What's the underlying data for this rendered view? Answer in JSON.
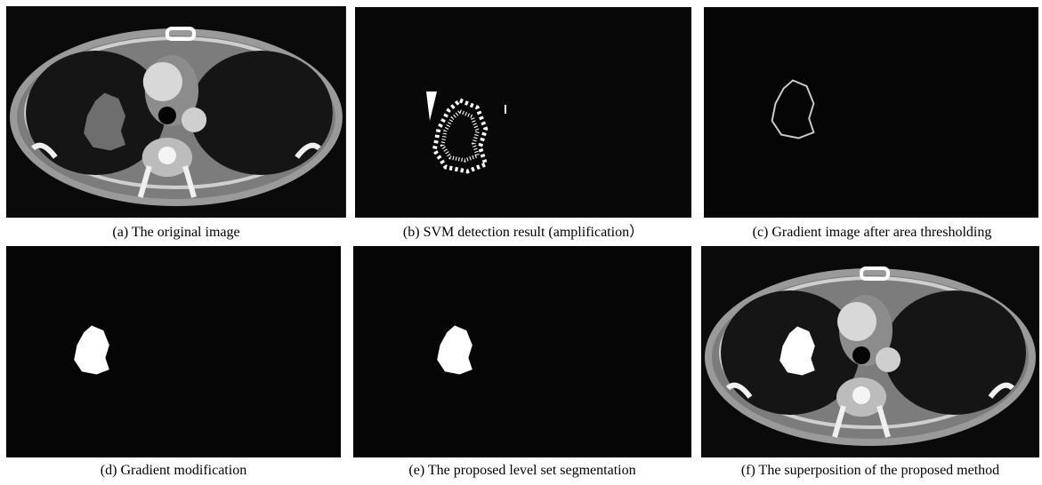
{
  "panels": [
    {
      "caption": "(a) The original  image"
    },
    {
      "caption": "(b) SVM detection result (amplification）"
    },
    {
      "caption": "(c) Gradient image after area thresholding"
    },
    {
      "caption": "(d) Gradient modification"
    },
    {
      "caption": "(e) The proposed level set segmentation"
    },
    {
      "caption": "(f) The superposition of the proposed method"
    }
  ]
}
